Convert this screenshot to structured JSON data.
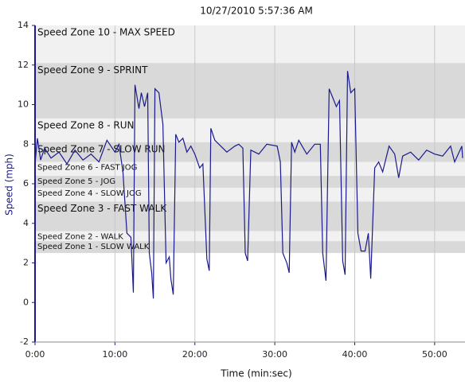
{
  "chart_data": {
    "type": "line",
    "title": "10/27/2010 5:57:36 AM",
    "x_label": "Time (min:sec)",
    "y_label": "Speed (mph)",
    "xlim": [
      0,
      53.8
    ],
    "ylim": [
      -2,
      14
    ],
    "xticks": [
      {
        "value": 0,
        "label": "0:00"
      },
      {
        "value": 10,
        "label": "10:00"
      },
      {
        "value": 20,
        "label": "20:00"
      },
      {
        "value": 30,
        "label": "30:00"
      },
      {
        "value": 40,
        "label": "40:00"
      },
      {
        "value": 50,
        "label": "50:00"
      }
    ],
    "yticks": [
      -2,
      0,
      2,
      4,
      6,
      8,
      10,
      12,
      14
    ],
    "grid": "x",
    "zones": [
      {
        "label": "Speed Zone 10 - MAX SPEED",
        "from": 12.1,
        "to": 14,
        "color": "#f1f1f1"
      },
      {
        "label": "Speed Zone 9 - SPRINT",
        "from": 9.3,
        "to": 12.1,
        "color": "#d9d9d9"
      },
      {
        "label": "Speed Zone 8 - RUN",
        "from": 8.1,
        "to": 9.3,
        "color": "#f1f1f1"
      },
      {
        "label": "Speed Zone 7 - SLOW RUN",
        "from": 7.1,
        "to": 8.1,
        "color": "#d9d9d9"
      },
      {
        "label": "Speed Zone 6 - FAST JOG",
        "from": 6.4,
        "to": 7.1,
        "color": "#f1f1f1"
      },
      {
        "label": "Speed Zone 5 - JOG",
        "from": 5.8,
        "to": 6.4,
        "color": "#d9d9d9"
      },
      {
        "label": "Speed Zone 4 - SLOW JOG",
        "from": 5.1,
        "to": 5.8,
        "color": "#f1f1f1"
      },
      {
        "label": "Speed Zone 3 - FAST WALK",
        "from": 3.6,
        "to": 5.1,
        "color": "#d9d9d9"
      },
      {
        "label": "Speed Zone 2 - WALK",
        "from": 3.1,
        "to": 3.6,
        "color": "#f1f1f1"
      },
      {
        "label": "Speed Zone 1 - SLOW WALK",
        "from": 2.5,
        "to": 3.1,
        "color": "#d9d9d9"
      }
    ],
    "series": [
      {
        "color": "#1a1a8c",
        "x": [
          0,
          0.3,
          0.7,
          1.2,
          2,
          3,
          4,
          5,
          6,
          7,
          8,
          9,
          10,
          10.5,
          11,
          11.5,
          12,
          12.3,
          12.5,
          13,
          13.3,
          13.7,
          14.1,
          14.3,
          14.6,
          14.8,
          15,
          15.5,
          16,
          16.4,
          16.8,
          17,
          17.3,
          17.6,
          18,
          18.5,
          19,
          19.5,
          20,
          20.6,
          21,
          21.5,
          21.8,
          22,
          22.5,
          23,
          24,
          25,
          25.5,
          26,
          26.3,
          26.6,
          27,
          28,
          29,
          30.3,
          30.7,
          31,
          31.5,
          31.8,
          32.1,
          32.5,
          33,
          34,
          35,
          35.7,
          36,
          36.4,
          36.8,
          37.3,
          37.7,
          38.1,
          38.5,
          38.8,
          39.1,
          39.5,
          40,
          40.4,
          40.8,
          41.3,
          41.7,
          42,
          42.5,
          43,
          43.5,
          44.3,
          45,
          45.5,
          46,
          47,
          48,
          49,
          50,
          51,
          52,
          52.5,
          53.4,
          53.5
        ],
        "values": [
          7.0,
          8.3,
          7.2,
          7.8,
          7.3,
          7.6,
          7.0,
          7.7,
          7.2,
          7.5,
          7.1,
          8.2,
          7.6,
          8.0,
          6.6,
          3.5,
          3.3,
          0.5,
          11.0,
          9.8,
          10.6,
          9.9,
          10.6,
          2.5,
          1.5,
          0.2,
          10.8,
          10.6,
          9.0,
          2.0,
          2.3,
          1.2,
          0.4,
          8.5,
          8.1,
          8.3,
          7.6,
          7.9,
          7.5,
          6.8,
          7.0,
          2.2,
          1.6,
          8.8,
          8.2,
          8.0,
          7.6,
          7.9,
          8.0,
          7.8,
          2.5,
          2.1,
          7.7,
          7.5,
          8.0,
          7.9,
          7.1,
          2.5,
          2.0,
          1.5,
          8.1,
          7.6,
          8.2,
          7.5,
          8.0,
          8.0,
          2.5,
          1.1,
          10.8,
          10.3,
          9.9,
          10.2,
          2.1,
          1.4,
          11.7,
          10.6,
          10.8,
          3.5,
          2.6,
          2.6,
          3.5,
          1.2,
          6.8,
          7.1,
          6.6,
          7.9,
          7.5,
          6.3,
          7.4,
          7.6,
          7.2,
          7.7,
          7.5,
          7.4,
          7.9,
          7.1,
          7.9,
          7.3
        ]
      }
    ]
  }
}
